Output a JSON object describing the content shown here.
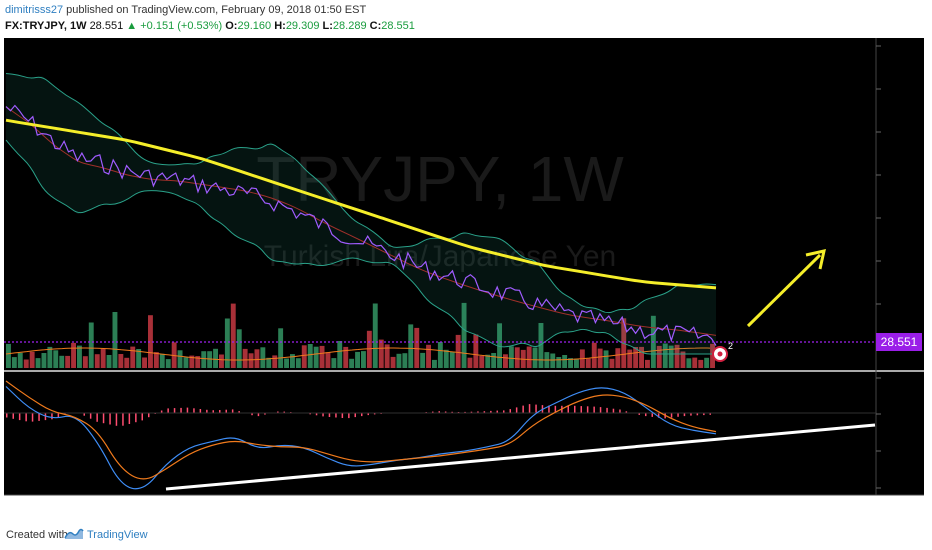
{
  "header": {
    "author": "dimitrisss27",
    "publish_text": "published on TradingView.com, February 09, 2018 01:50 EST",
    "symbol": "FX:TRYJPY, 1W",
    "last": "28.551",
    "change": "+0.151 (+0.53%)",
    "o_label": "O:",
    "o_value": "29.160",
    "h_label": "H:",
    "h_value": "29.309",
    "l_label": "L:",
    "l_value": "28.289",
    "c_label": "C:",
    "c_value": "28.551"
  },
  "watermark": {
    "symbol": "TRYJPY, 1W",
    "description": "Turkish Lira/Japanese Yen"
  },
  "price_label": "28.551",
  "badge_count": "2",
  "footer": {
    "created_with": "Created with",
    "brand": "TradingView"
  },
  "colors": {
    "background": "#000000",
    "ma_yellow": "#f5ee2a",
    "price_purple": "#a05cff",
    "bollinger": "#2aa189",
    "bb_mid": "#a0302a",
    "vol_up": "#2c7f55",
    "vol_down": "#a83038",
    "macd": "#3f8ef7",
    "signal": "#f07a1c",
    "hist": "#ff4d70",
    "price_line": "#a020f0",
    "trendline": "#ffffff",
    "arrow": "#f5ee2a"
  },
  "chart_data": {
    "type": "line",
    "symbol": "FX:TRYJPY",
    "timeframe": "1W",
    "last_price": 28.551,
    "ohlc": {
      "open": 29.16,
      "high": 29.309,
      "low": 28.289,
      "close": 28.551
    },
    "change": 0.151,
    "change_pct": 0.53,
    "grid": false,
    "price_series_norm": [
      0.08,
      0.14,
      0.22,
      0.28,
      0.3,
      0.33,
      0.35,
      0.36,
      0.38,
      0.4,
      0.42,
      0.45,
      0.49,
      0.54,
      0.58,
      0.62,
      0.66,
      0.7,
      0.73,
      0.76,
      0.79,
      0.82,
      0.85,
      0.88,
      0.9,
      0.92,
      0.94,
      0.95,
      0.96,
      0.97
    ],
    "ma_series_norm": [
      0.12,
      0.14,
      0.16,
      0.18,
      0.2,
      0.22,
      0.25,
      0.28,
      0.31,
      0.35,
      0.39,
      0.43,
      0.47,
      0.51,
      0.55,
      0.59,
      0.63,
      0.67,
      0.71,
      0.75,
      0.78,
      0.81,
      0.84,
      0.86,
      0.88,
      0.9,
      0.92,
      0.93,
      0.94,
      0.95
    ],
    "annotations": [
      "ascending support trendline on MACD",
      "upward arrow projection"
    ]
  }
}
